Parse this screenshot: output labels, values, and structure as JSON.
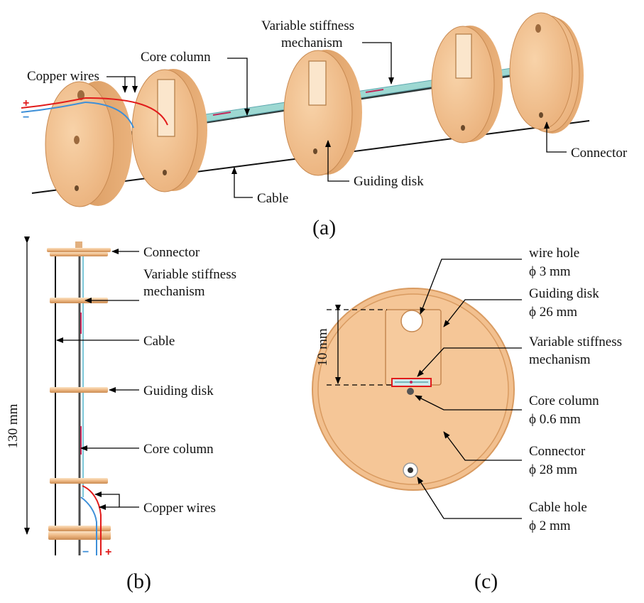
{
  "panel_a": {
    "caption": "(a)",
    "labels": {
      "copper_wires": "Copper wires",
      "core_column": "Core column",
      "vsm_line1": "Variable stiffness",
      "vsm_line2": "mechanism",
      "connector": "Connector",
      "guiding_disk": "Guiding disk",
      "cable": "Cable"
    },
    "plus": "+",
    "minus": "−"
  },
  "panel_b": {
    "caption": "(b)",
    "dimension": "130 mm",
    "labels": {
      "connector": "Connector",
      "vsm_line1": "Variable stiffness",
      "vsm_line2": "mechanism",
      "cable": "Cable",
      "guiding_disk": "Guiding disk",
      "core_column": "Core column",
      "copper_wires": "Copper wires"
    },
    "plus": "+",
    "minus": "−"
  },
  "panel_c": {
    "caption": "(c)",
    "dimension": "10 mm",
    "labels": {
      "wire_hole": "wire hole",
      "wire_hole_dim": "ϕ 3 mm",
      "guiding_disk": "Guiding disk",
      "guiding_disk_dim": "ϕ 26 mm",
      "vsm_line1": "Variable stiffness",
      "vsm_line2": "mechanism",
      "core_column": "Core column",
      "core_column_dim": "ϕ 0.6 mm",
      "connector": "Connector",
      "connector_dim": "ϕ 28 mm",
      "cable_hole": "Cable hole",
      "cable_hole_dim": "ϕ 2 mm"
    }
  },
  "colors": {
    "disk_fill": "#f2c08f",
    "disk_edge": "#d9995e",
    "wire_red": "#e11b1b",
    "wire_blue": "#3d8fd8",
    "strip": "#8fd0d6"
  }
}
